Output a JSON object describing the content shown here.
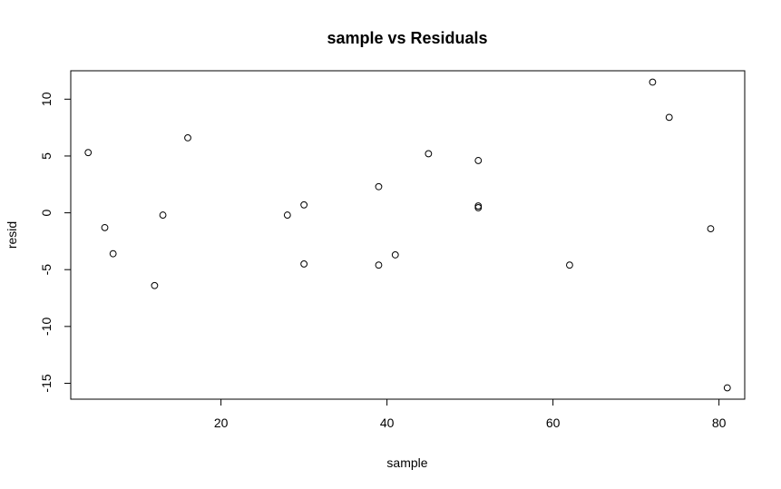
{
  "chart_data": {
    "type": "scatter",
    "title": "sample vs Residuals",
    "xlabel": "sample",
    "ylabel": "resid",
    "xlim": [
      1.9,
      83.1
    ],
    "ylim": [
      -16.4,
      12.5
    ],
    "xticks": [
      20,
      40,
      60,
      80
    ],
    "yticks": [
      -15,
      -10,
      -5,
      0,
      5,
      10
    ],
    "grid": false,
    "legend": "none",
    "point_color": "#000000",
    "points": [
      {
        "x": 4,
        "y": 5.3
      },
      {
        "x": 6,
        "y": -1.3
      },
      {
        "x": 7,
        "y": -3.6
      },
      {
        "x": 12,
        "y": -6.4
      },
      {
        "x": 13,
        "y": -0.2
      },
      {
        "x": 16,
        "y": 6.6
      },
      {
        "x": 28,
        "y": -0.2
      },
      {
        "x": 30,
        "y": 0.7
      },
      {
        "x": 30,
        "y": -4.5
      },
      {
        "x": 39,
        "y": 2.3
      },
      {
        "x": 39,
        "y": -4.6
      },
      {
        "x": 41,
        "y": -3.7
      },
      {
        "x": 45,
        "y": 5.2
      },
      {
        "x": 51,
        "y": 4.6
      },
      {
        "x": 51,
        "y": 0.6
      },
      {
        "x": 51,
        "y": 0.45
      },
      {
        "x": 62,
        "y": -4.6
      },
      {
        "x": 72,
        "y": 11.5
      },
      {
        "x": 74,
        "y": 8.4
      },
      {
        "x": 79,
        "y": -1.4
      },
      {
        "x": 81,
        "y": -15.4
      }
    ]
  }
}
